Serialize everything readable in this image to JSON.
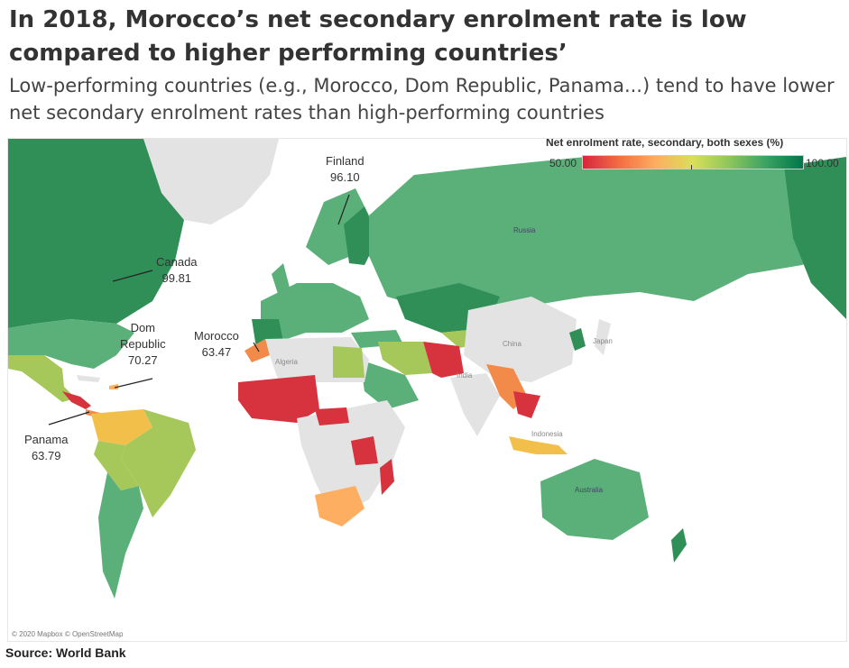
{
  "title": "In 2018, Morocco’s net secondary enrolment rate is low compared to higher performing countries’",
  "subtitle": "Low-performing countries (e.g., Morocco, Dom Republic, Panama...) tend to have lower net secondary enrolment rates than high-performing countries",
  "legend": {
    "title": "Net enrolment rate, secondary, both sexes (%)",
    "min_label": "50.00",
    "max_label": "100.00",
    "min_value": 50,
    "max_value": 100,
    "colors": [
      "#d7263d",
      "#f46d43",
      "#fdae61",
      "#d9df5a",
      "#8cc65c",
      "#3aa262",
      "#00764a"
    ]
  },
  "callouts": [
    {
      "country": "Finland",
      "value": "96.10"
    },
    {
      "country": "Canada",
      "value": "99.81"
    },
    {
      "country": "Dom Republic",
      "line1": "Dom",
      "line2": "Republic",
      "value": "70.27"
    },
    {
      "country": "Morocco",
      "value": "63.47"
    },
    {
      "country": "Panama",
      "value": "63.79"
    }
  ],
  "map_labels": {
    "china": "China",
    "japan": "Japan",
    "india": "India",
    "indonesia": "Indonesia",
    "algeria": "Algeria",
    "australia": "Australia",
    "russia": "Russia"
  },
  "credit": "© 2020 Mapbox © OpenStreetMap",
  "source": "Source: World Bank",
  "colors": {
    "no_data": "#e3e3e3",
    "ocean": "#ffffff",
    "green_high": "#2f8f57",
    "green_mid": "#5bb07a",
    "yellow_green": "#a6c85a",
    "orange": "#f28a4a",
    "red": "#d6333f"
  }
}
